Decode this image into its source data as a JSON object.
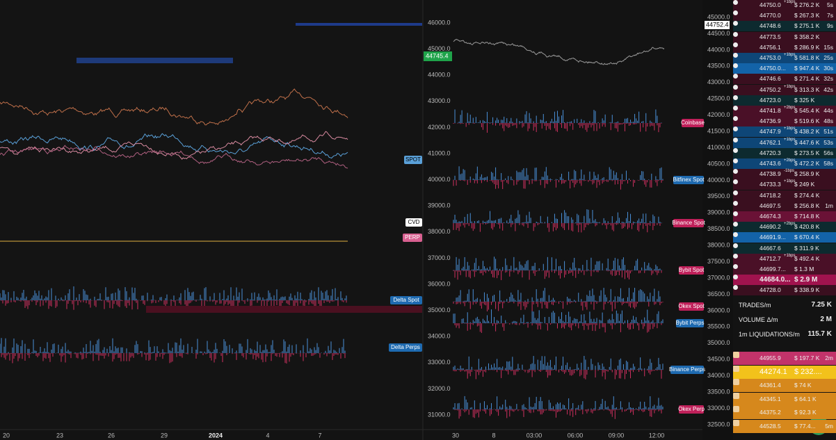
{
  "left_axis": [
    "46000.0",
    "45000.0",
    "44000.0",
    "43000.0",
    "42000.0",
    "41000.0",
    "40000.0",
    "39000.0",
    "38000.0",
    "37000.0",
    "36000.0",
    "35000.0",
    "34000.0",
    "33000.0",
    "32000.0",
    "31000.0"
  ],
  "left_price_tag": "44745.4",
  "left_x_axis": [
    "20",
    "23",
    "26",
    "29",
    "2024",
    "4",
    "7"
  ],
  "left_tags": [
    "SPOT",
    "CVD",
    "PERP",
    "Delta Spot",
    "Delta Perps"
  ],
  "mid_axis": [
    "45000.0",
    "44500.0",
    "44000.0",
    "43500.0",
    "43000.0",
    "42500.0",
    "42000.0",
    "41500.0",
    "41000.0",
    "40500.0",
    "40000.0",
    "39500.0",
    "39000.0",
    "38500.0",
    "38000.0",
    "37500.0",
    "37000.0",
    "36500.0",
    "36000.0",
    "35500.0",
    "35000.0",
    "34500.0",
    "34000.0",
    "33500.0",
    "33000.0",
    "32500.0"
  ],
  "mid_price_tag": "44752.4",
  "mid_x_axis": [
    "30",
    "8",
    "03:00",
    "06:00",
    "09:00",
    "12:00"
  ],
  "mid_tags": [
    "Coinbase",
    "Bitfinex Spot",
    "Binance Spot",
    "Bybit Spot",
    "Okex Spot",
    "Bybit Perps",
    "Binance Perps",
    "Okex Perp"
  ],
  "trades": [
    {
      "price": "44750.0",
      "note": "+1bps",
      "amount": "$ 276.2 K",
      "time": "5s",
      "color": "#3a0f1f"
    },
    {
      "price": "44770.0",
      "note": "",
      "amount": "$ 267.3 K",
      "time": "7s",
      "color": "#3a0f1f"
    },
    {
      "price": "44748.6",
      "note": "",
      "amount": "$ 275.1 K",
      "time": "9s",
      "color": "#0d2a2f"
    },
    {
      "price": "44773.5",
      "note": "",
      "amount": "$ 358.2 K",
      "time": "",
      "color": "#3a0f1f"
    },
    {
      "price": "44756.1",
      "note": "",
      "amount": "$ 286.9 K",
      "time": "15s",
      "color": "#3a0f1f"
    },
    {
      "price": "44753.0",
      "note": "+1bps",
      "amount": "$ 581.8 K",
      "time": "25s",
      "color": "#0e4677"
    },
    {
      "price": "44750.0...",
      "note": "",
      "amount": "$ 947.4 K",
      "time": "30s",
      "color": "#1363a8"
    },
    {
      "price": "44746.6",
      "note": "",
      "amount": "$ 271.4 K",
      "time": "32s",
      "color": "#3a0f1f"
    },
    {
      "price": "44750.2",
      "note": "+1bps",
      "amount": "$ 313.3 K",
      "time": "42s",
      "color": "#3a0f1f"
    },
    {
      "price": "44723.0",
      "note": "",
      "amount": "$ 325 K",
      "time": "",
      "color": "#0d2a2f"
    },
    {
      "price": "44741.8",
      "note": "+2bps",
      "amount": "$ 545.4 K",
      "time": "44s",
      "color": "#4a1027"
    },
    {
      "price": "44736.9",
      "note": "",
      "amount": "$ 519.6 K",
      "time": "48s",
      "color": "#4a1027"
    },
    {
      "price": "44747.9",
      "note": "+1bps",
      "amount": "$ 438.2 K",
      "time": "51s",
      "color": "#0e4677"
    },
    {
      "price": "44762.1",
      "note": "+1bps",
      "amount": "$ 447.6 K",
      "time": "53s",
      "color": "#0e4677"
    },
    {
      "price": "44720.3",
      "note": "",
      "amount": "$ 273.5 K",
      "time": "56s",
      "color": "#0d2a2f"
    },
    {
      "price": "44743.6",
      "note": "+2bps",
      "amount": "$ 472.2 K",
      "time": "58s",
      "color": "#0e4677"
    },
    {
      "price": "44738.9",
      "note": "-1bps",
      "amount": "$ 258.9 K",
      "time": "",
      "color": "#3a0f1f"
    },
    {
      "price": "44733.3",
      "note": "+1bps",
      "amount": "$ 249 K",
      "time": "",
      "color": "#3a0f1f"
    },
    {
      "price": "44718.2",
      "note": "",
      "amount": "$ 274.4 K",
      "time": "",
      "color": "#3a0f1f"
    },
    {
      "price": "44697.5",
      "note": "",
      "amount": "$ 256.8 K",
      "time": "1m",
      "color": "#3a0f1f"
    },
    {
      "price": "44674.3",
      "note": "",
      "amount": "$ 714.8 K",
      "time": "",
      "color": "#6a1236"
    },
    {
      "price": "44690.2",
      "note": "+2bps",
      "amount": "$ 420.8 K",
      "time": "",
      "color": "#0d2a2f"
    },
    {
      "price": "44691.9...",
      "note": "",
      "amount": "$ 670.4 K",
      "time": "",
      "color": "#1363a8"
    },
    {
      "price": "44667.6",
      "note": "",
      "amount": "$ 311.9 K",
      "time": "",
      "color": "#0d2a2f"
    },
    {
      "price": "44712.7",
      "note": "+1bps",
      "amount": "$ 492.4 K",
      "time": "",
      "color": "#4a1027"
    },
    {
      "price": "44699.7...",
      "note": "",
      "amount": "$ 1.3 M",
      "time": "",
      "color": "#4a1027"
    },
    {
      "price": "44684.0...",
      "note": "",
      "amount": "$ 2.9 M",
      "time": "",
      "color": "#a0134e"
    },
    {
      "price": "44728.0",
      "note": "",
      "amount": "$ 338.9 K",
      "time": "",
      "color": "#3a0f1f"
    }
  ],
  "stats": [
    {
      "label": "TRADES/m",
      "value": "7.25 K"
    },
    {
      "label": "VOLUME Δ/m",
      "value": "2 M"
    },
    {
      "label": "1m LIQUIDATIONS/m",
      "value": "115.7 K"
    }
  ],
  "liquidations": [
    {
      "price": "44955.9",
      "amount": "$ 197.7 K",
      "time": "2m",
      "color": "#c2336a"
    },
    {
      "price": "44274.1",
      "amount": "$ 232....",
      "time": "",
      "color": "#f2c21b"
    },
    {
      "price": "44361.4",
      "amount": "$ 74 K",
      "time": "",
      "color": "#d6881c"
    },
    {
      "price": "44345.1",
      "amount": "$ 64.1 K",
      "time": "",
      "color": "#d6881c"
    },
    {
      "price": "44375.2",
      "amount": "$ 92.3 K",
      "time": "",
      "color": "#d6881c"
    },
    {
      "price": "44528.5",
      "amount": "$ 77.4...",
      "time": "5m",
      "color": "#d6881c"
    }
  ]
}
